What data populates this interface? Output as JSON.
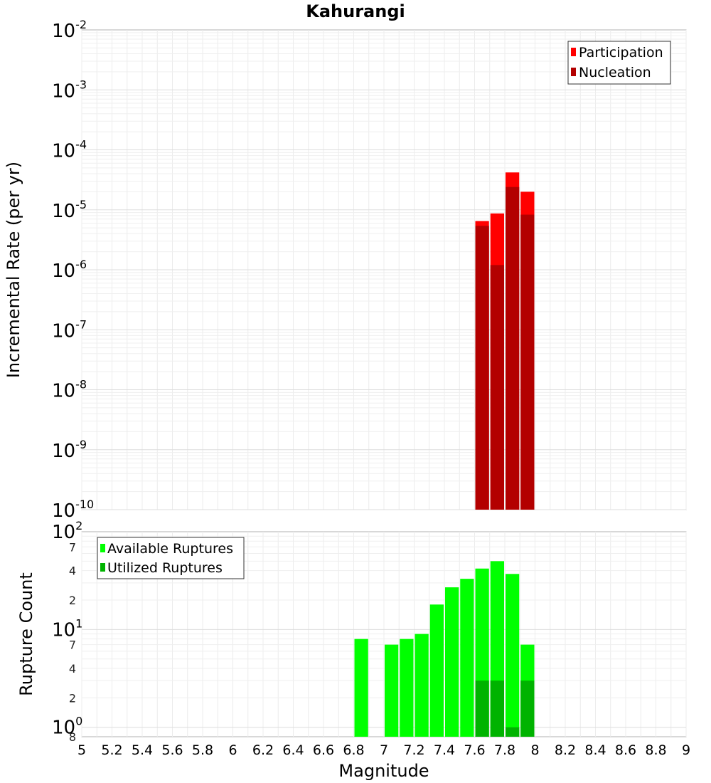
{
  "chart_data": [
    {
      "type": "bar",
      "title": "Kahurangi",
      "xlabel": "",
      "ylabel": "Incremental Rate (per yr)",
      "yscale": "log",
      "ylim": [
        1e-10,
        0.01
      ],
      "xlim": [
        5,
        9
      ],
      "y_ticks": [
        {
          "base": "10",
          "exp": "-10"
        },
        {
          "base": "10",
          "exp": "-9"
        },
        {
          "base": "10",
          "exp": "-8"
        },
        {
          "base": "10",
          "exp": "-7"
        },
        {
          "base": "10",
          "exp": "-6"
        },
        {
          "base": "10",
          "exp": "-5"
        },
        {
          "base": "10",
          "exp": "-4"
        },
        {
          "base": "10",
          "exp": "-3"
        },
        {
          "base": "10",
          "exp": "-2"
        }
      ],
      "legend_position": "top-right",
      "grid": true,
      "x": [
        7.6,
        7.7,
        7.8,
        7.9
      ],
      "series": [
        {
          "name": "Participation",
          "color": "#ff0000",
          "values": [
            6.5e-06,
            8.7e-06,
            4.2e-05,
            2e-05
          ]
        },
        {
          "name": "Nucleation",
          "color": "#b30000",
          "values": [
            5.4e-06,
            1.2e-06,
            2.4e-05,
            8.3e-06
          ]
        }
      ]
    },
    {
      "type": "bar",
      "title": "",
      "xlabel": "Magnitude",
      "ylabel": "Rupture Count",
      "yscale": "log",
      "ylim": [
        0.8,
        100
      ],
      "xlim": [
        5,
        9
      ],
      "x_ticks": [
        "5",
        "5.2",
        "5.4",
        "5.6",
        "5.8",
        "6",
        "6.2",
        "6.4",
        "6.6",
        "6.8",
        "7",
        "7.2",
        "7.4",
        "7.6",
        "7.8",
        "8",
        "8.2",
        "8.4",
        "8.6",
        "8.8",
        "9"
      ],
      "y_ticks": [
        {
          "base": "10",
          "exp": "0"
        },
        {
          "base": "10",
          "exp": "1"
        },
        {
          "base": "10",
          "exp": "2"
        }
      ],
      "y_minor_ticks": [
        {
          "label": "8",
          "value": 0.8
        },
        {
          "label": "2",
          "value": 2
        },
        {
          "label": "4",
          "value": 4
        },
        {
          "label": "7",
          "value": 7
        },
        {
          "label": "2",
          "value": 20
        },
        {
          "label": "4",
          "value": 40
        },
        {
          "label": "7",
          "value": 70
        }
      ],
      "legend_position": "top-left",
      "grid": true,
      "x": [
        6.8,
        6.9,
        7.0,
        7.1,
        7.2,
        7.3,
        7.4,
        7.5,
        7.6,
        7.7,
        7.8,
        7.9
      ],
      "series": [
        {
          "name": "Available Ruptures",
          "color": "#00ff00",
          "values": [
            8,
            0,
            7,
            8,
            9,
            18,
            27,
            33,
            42,
            50,
            37,
            7
          ]
        },
        {
          "name": "Utilized Ruptures",
          "color": "#00b300",
          "values": [
            0,
            0,
            0,
            0,
            0,
            0,
            0,
            0,
            3,
            3,
            1,
            3
          ]
        }
      ]
    }
  ]
}
